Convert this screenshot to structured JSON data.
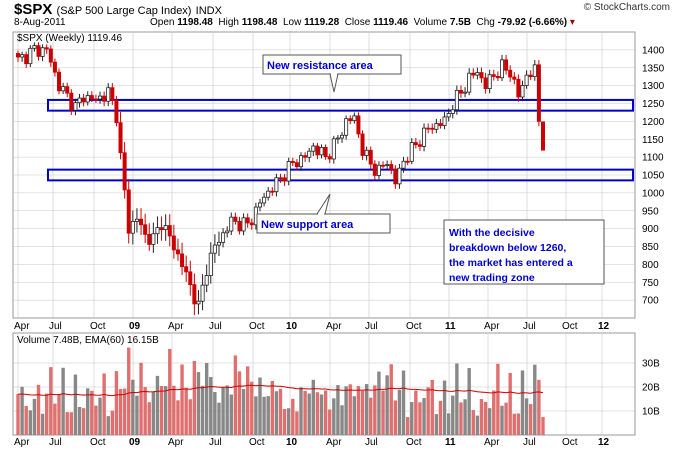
{
  "header": {
    "symbol": "$SPX",
    "index_name": "(S&P 500 Large Cap Index)",
    "exchange": "INDX",
    "date": "8-Aug-2011",
    "open_label": "Open",
    "open": "1198.48",
    "high_label": "High",
    "high": "1198.48",
    "low_label": "Low",
    "low": "1119.28",
    "close_label": "Close",
    "close": "1119.46",
    "volume_label": "Volume",
    "volume": "7.5B",
    "chg_label": "Chg",
    "chg": "-79.92 (-6.66%)",
    "brand": "© StockCharts.com"
  },
  "legend": {
    "price": "$SPX (Weekly) 1119.46",
    "volume": "Volume 7.48B, EMA(60) 16.15B"
  },
  "annotations": {
    "resistance": "New resistance area",
    "support": "New support area",
    "note": [
      "With the decisive",
      "breakdown below 1260,",
      "the market has entered a",
      "new trading zone"
    ]
  },
  "colors": {
    "up": "#222222",
    "down": "#cc0000",
    "zone": "#0000cc",
    "ema": "#cc0000",
    "vol_up": "#888888",
    "vol_down": "#e07070",
    "grid": "#c8c8c8",
    "label_text": "#0000cc"
  },
  "chart_data": {
    "type": "candlestick",
    "timeframe": "weekly",
    "x_range": [
      "2008-04",
      "2012-12"
    ],
    "x_tick_labels": [
      "Apr",
      "Jul",
      "Oct",
      "09",
      "Apr",
      "Jul",
      "Oct",
      "10",
      "Apr",
      "Jul",
      "Oct",
      "11",
      "Apr",
      "Jul",
      "Oct",
      "12"
    ],
    "price_axis": {
      "ylim": [
        650,
        1450
      ],
      "ticks": [
        700,
        750,
        800,
        850,
        900,
        950,
        1000,
        1050,
        1100,
        1150,
        1200,
        1250,
        1300,
        1350,
        1400
      ]
    },
    "price_keyframes": [
      [
        0,
        1370
      ],
      [
        4,
        1400
      ],
      [
        7,
        1400
      ],
      [
        10,
        1300
      ],
      [
        14,
        1240
      ],
      [
        16,
        1270
      ],
      [
        19,
        1260
      ],
      [
        22,
        1280
      ],
      [
        24,
        1220
      ],
      [
        25,
        1100
      ],
      [
        27,
        900
      ],
      [
        29,
        930
      ],
      [
        31,
        880
      ],
      [
        33,
        870
      ],
      [
        35,
        920
      ],
      [
        38,
        850
      ],
      [
        40,
        800
      ],
      [
        42,
        740
      ],
      [
        44,
        680
      ],
      [
        46,
        790
      ],
      [
        48,
        850
      ],
      [
        52,
        920
      ],
      [
        56,
        910
      ],
      [
        60,
        990
      ],
      [
        64,
        1040
      ],
      [
        66,
        1070
      ],
      [
        68,
        1090
      ],
      [
        70,
        1100
      ],
      [
        72,
        1130
      ],
      [
        75,
        1100
      ],
      [
        78,
        1150
      ],
      [
        80,
        1200
      ],
      [
        82,
        1210
      ],
      [
        84,
        1120
      ],
      [
        86,
        1080
      ],
      [
        88,
        1060
      ],
      [
        90,
        1090
      ],
      [
        92,
        1030
      ],
      [
        94,
        1090
      ],
      [
        96,
        1120
      ],
      [
        98,
        1150
      ],
      [
        100,
        1180
      ],
      [
        104,
        1200
      ],
      [
        106,
        1250
      ],
      [
        108,
        1280
      ],
      [
        110,
        1320
      ],
      [
        112,
        1340
      ],
      [
        114,
        1300
      ],
      [
        116,
        1330
      ],
      [
        118,
        1350
      ],
      [
        120,
        1340
      ],
      [
        122,
        1270
      ],
      [
        124,
        1330
      ],
      [
        126,
        1340
      ],
      [
        127,
        1200
      ],
      [
        128,
        1120
      ]
    ],
    "volume_axis": {
      "ylim": [
        0,
        40
      ],
      "unit": "B",
      "tick_labels": [
        "10B",
        "20B",
        "30B"
      ]
    },
    "volume_ema": {
      "label": "EMA(60)",
      "last": 16.15
    },
    "last_bar": {
      "open": 1198.48,
      "high": 1198.48,
      "low": 1119.28,
      "close": 1119.46,
      "volume": 7.48
    },
    "zones": [
      {
        "label": "New resistance area",
        "low": 1230,
        "high": 1260
      },
      {
        "label": "New support area",
        "low": 1035,
        "high": 1065
      }
    ]
  }
}
